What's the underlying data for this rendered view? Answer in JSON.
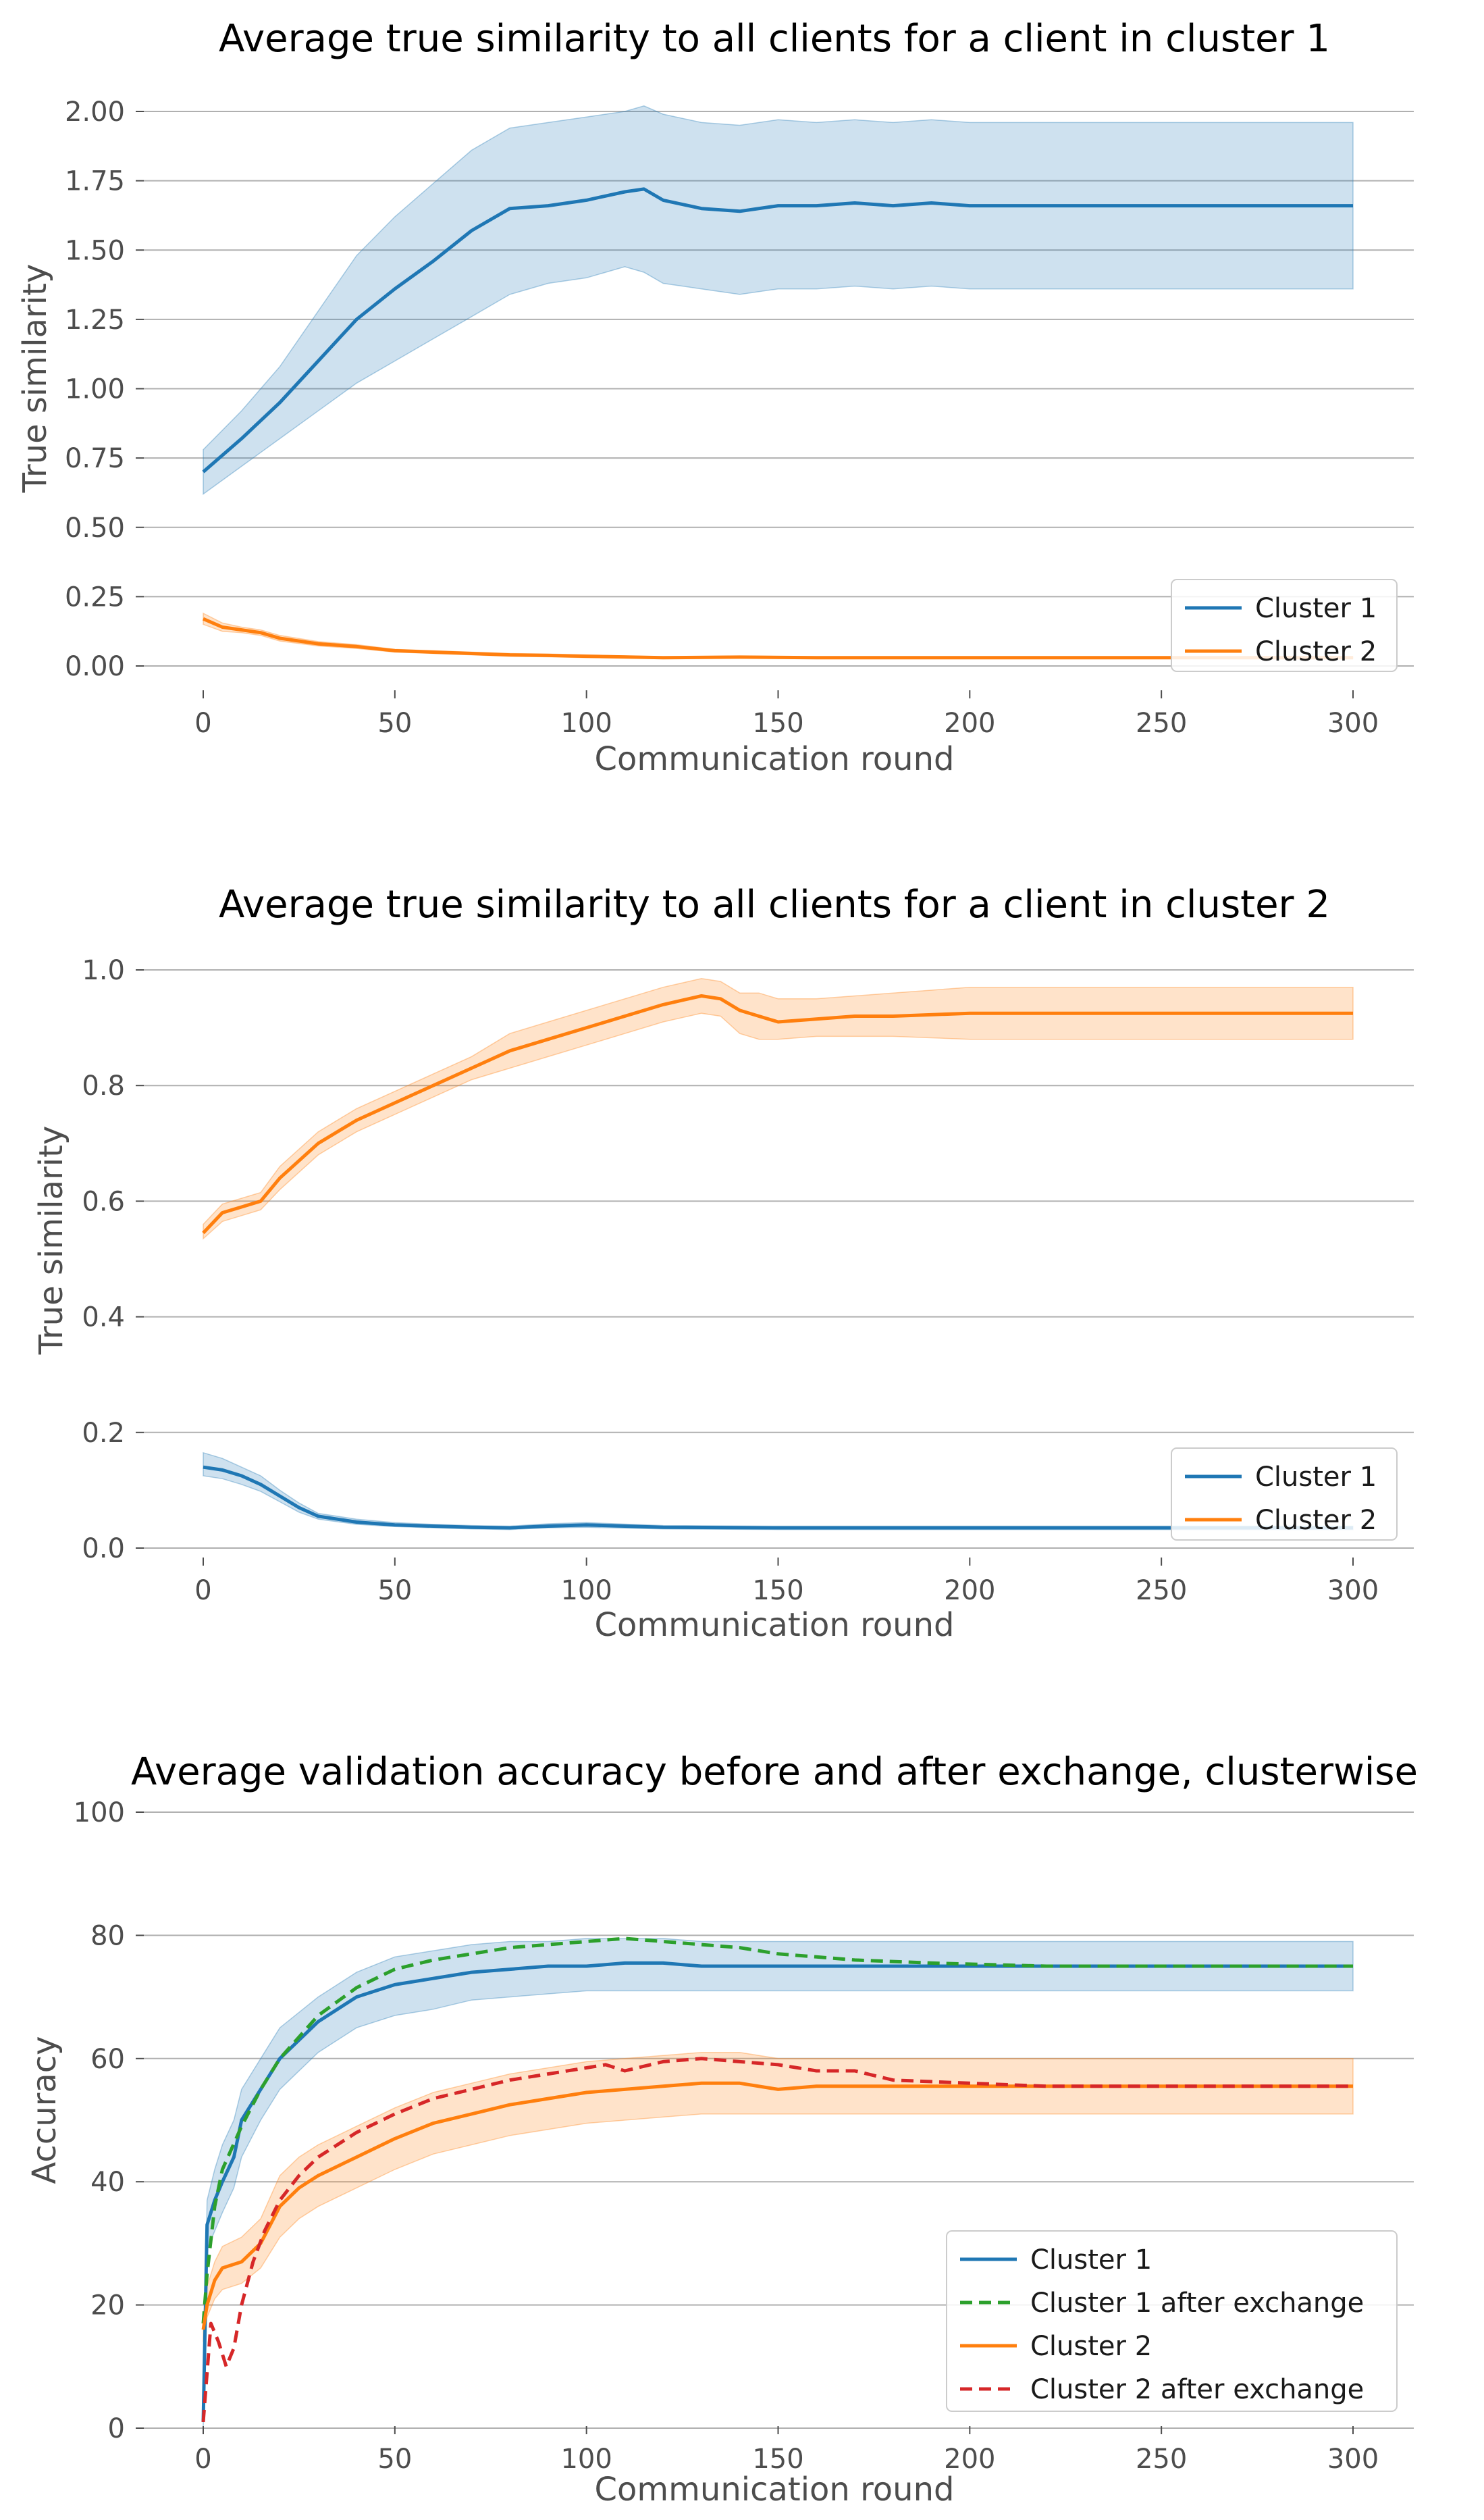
{
  "colors": {
    "cluster1": "#1f77b4",
    "cluster2": "#ff7f0e",
    "cluster1_after": "#2ca02c",
    "cluster2_after": "#d62728",
    "grid": "#b0b0b0",
    "tick_text": "#4d4d4d"
  },
  "chart_data": [
    {
      "type": "line",
      "title": "Average true similarity to all clients for a client in cluster 1",
      "xlabel": "Communication round",
      "ylabel": "True similarity",
      "xlim": [
        0,
        300
      ],
      "ylim": [
        0,
        2.0
      ],
      "xticks": [
        0,
        50,
        100,
        150,
        200,
        250,
        300
      ],
      "yticks": [
        0.0,
        0.25,
        0.5,
        0.75,
        1.0,
        1.25,
        1.5,
        1.75,
        2.0
      ],
      "ytick_labels": [
        "0.00",
        "0.25",
        "0.50",
        "0.75",
        "1.00",
        "1.25",
        "1.50",
        "1.75",
        "2.00"
      ],
      "grid": "horizontal",
      "legend": "bottom-right",
      "series": [
        {
          "name": "Cluster 1",
          "color_key": "cluster1",
          "dash": false,
          "x": [
            0,
            10,
            20,
            30,
            40,
            50,
            60,
            70,
            80,
            90,
            100,
            110,
            115,
            120,
            130,
            140,
            150,
            160,
            170,
            180,
            190,
            200,
            210,
            220,
            300
          ],
          "y": [
            0.7,
            0.82,
            0.95,
            1.1,
            1.25,
            1.36,
            1.46,
            1.57,
            1.65,
            1.66,
            1.68,
            1.71,
            1.72,
            1.68,
            1.65,
            1.64,
            1.66,
            1.66,
            1.67,
            1.66,
            1.67,
            1.66,
            1.66,
            1.66,
            1.66
          ],
          "band_lower": [
            0.62,
            0.72,
            0.82,
            0.92,
            1.02,
            1.1,
            1.18,
            1.26,
            1.34,
            1.38,
            1.4,
            1.44,
            1.42,
            1.38,
            1.36,
            1.34,
            1.36,
            1.36,
            1.37,
            1.36,
            1.37,
            1.36,
            1.36,
            1.36,
            1.36
          ],
          "band_upper": [
            0.78,
            0.92,
            1.08,
            1.28,
            1.48,
            1.62,
            1.74,
            1.86,
            1.94,
            1.96,
            1.98,
            2.0,
            2.02,
            1.99,
            1.96,
            1.95,
            1.97,
            1.96,
            1.97,
            1.96,
            1.97,
            1.96,
            1.96,
            1.96,
            1.96
          ]
        },
        {
          "name": "Cluster 2",
          "color_key": "cluster2",
          "dash": false,
          "x": [
            0,
            5,
            10,
            15,
            20,
            30,
            40,
            50,
            60,
            70,
            80,
            90,
            100,
            120,
            140,
            160,
            200,
            250,
            300
          ],
          "y": [
            0.17,
            0.14,
            0.13,
            0.12,
            0.1,
            0.08,
            0.07,
            0.055,
            0.05,
            0.045,
            0.04,
            0.038,
            0.035,
            0.03,
            0.032,
            0.03,
            0.03,
            0.03,
            0.03
          ],
          "band_lower": [
            0.15,
            0.125,
            0.12,
            0.11,
            0.09,
            0.072,
            0.063,
            0.05,
            0.045,
            0.04,
            0.035,
            0.033,
            0.03,
            0.027,
            0.028,
            0.027,
            0.027,
            0.027,
            0.027
          ],
          "band_upper": [
            0.19,
            0.155,
            0.14,
            0.13,
            0.11,
            0.088,
            0.077,
            0.06,
            0.055,
            0.05,
            0.045,
            0.043,
            0.04,
            0.033,
            0.036,
            0.033,
            0.033,
            0.033,
            0.033
          ]
        }
      ]
    },
    {
      "type": "line",
      "title": "Average true similarity to all clients for a client in cluster 2",
      "xlabel": "Communication round",
      "ylabel": "True similarity",
      "xlim": [
        0,
        300
      ],
      "ylim": [
        0,
        1.0
      ],
      "xticks": [
        0,
        50,
        100,
        150,
        200,
        250,
        300
      ],
      "yticks": [
        0.0,
        0.2,
        0.4,
        0.6,
        0.8,
        1.0
      ],
      "ytick_labels": [
        "0.0",
        "0.2",
        "0.4",
        "0.6",
        "0.8",
        "1.0"
      ],
      "grid": "horizontal",
      "legend": "bottom-right",
      "series": [
        {
          "name": "Cluster 1",
          "color_key": "cluster1",
          "dash": false,
          "x": [
            0,
            5,
            10,
            15,
            20,
            25,
            30,
            40,
            50,
            60,
            70,
            80,
            90,
            100,
            120,
            150,
            200,
            250,
            300
          ],
          "y": [
            0.14,
            0.135,
            0.125,
            0.11,
            0.09,
            0.07,
            0.055,
            0.045,
            0.04,
            0.038,
            0.036,
            0.035,
            0.038,
            0.04,
            0.036,
            0.035,
            0.035,
            0.035,
            0.035
          ],
          "band_lower": [
            0.125,
            0.12,
            0.11,
            0.098,
            0.08,
            0.062,
            0.05,
            0.041,
            0.037,
            0.035,
            0.033,
            0.032,
            0.035,
            0.036,
            0.033,
            0.032,
            0.032,
            0.032,
            0.032
          ],
          "band_upper": [
            0.165,
            0.155,
            0.14,
            0.125,
            0.1,
            0.078,
            0.06,
            0.05,
            0.044,
            0.041,
            0.039,
            0.038,
            0.042,
            0.044,
            0.039,
            0.038,
            0.038,
            0.038,
            0.038
          ]
        },
        {
          "name": "Cluster 2",
          "color_key": "cluster2",
          "dash": false,
          "x": [
            0,
            5,
            10,
            15,
            20,
            30,
            40,
            50,
            60,
            70,
            80,
            90,
            100,
            110,
            120,
            130,
            135,
            140,
            145,
            150,
            160,
            170,
            180,
            200,
            220,
            300
          ],
          "y": [
            0.545,
            0.58,
            0.59,
            0.6,
            0.64,
            0.7,
            0.74,
            0.77,
            0.8,
            0.83,
            0.86,
            0.88,
            0.9,
            0.92,
            0.94,
            0.955,
            0.95,
            0.93,
            0.92,
            0.91,
            0.915,
            0.92,
            0.92,
            0.925,
            0.925,
            0.925
          ],
          "band_lower": [
            0.535,
            0.565,
            0.575,
            0.585,
            0.62,
            0.68,
            0.72,
            0.75,
            0.78,
            0.81,
            0.83,
            0.85,
            0.87,
            0.89,
            0.91,
            0.925,
            0.92,
            0.89,
            0.88,
            0.88,
            0.885,
            0.885,
            0.885,
            0.88,
            0.88,
            0.88
          ],
          "band_upper": [
            0.56,
            0.595,
            0.605,
            0.615,
            0.66,
            0.72,
            0.76,
            0.79,
            0.82,
            0.85,
            0.89,
            0.91,
            0.93,
            0.95,
            0.97,
            0.985,
            0.98,
            0.96,
            0.96,
            0.95,
            0.95,
            0.955,
            0.96,
            0.97,
            0.97,
            0.97
          ]
        }
      ]
    },
    {
      "type": "line",
      "title": "Average validation accuracy before and after exchange, clusterwise",
      "xlabel": "Communication round",
      "ylabel": "Accuracy",
      "xlim": [
        0,
        300
      ],
      "ylim": [
        0,
        100
      ],
      "xticks": [
        0,
        50,
        100,
        150,
        200,
        250,
        300
      ],
      "yticks": [
        0,
        20,
        40,
        60,
        80,
        100
      ],
      "ytick_labels": [
        "0",
        "20",
        "40",
        "60",
        "80",
        "100"
      ],
      "grid": "horizontal",
      "legend": "bottom-right",
      "series": [
        {
          "name": "Cluster 1",
          "color_key": "cluster1",
          "dash": false,
          "x": [
            0,
            1,
            3,
            5,
            8,
            10,
            15,
            20,
            30,
            40,
            50,
            60,
            70,
            80,
            90,
            100,
            110,
            120,
            130,
            140,
            150,
            170,
            200,
            220,
            300
          ],
          "y": [
            1,
            33,
            37,
            40,
            44,
            50,
            55,
            60,
            66,
            70,
            72,
            73,
            74,
            74.5,
            75,
            75,
            75.5,
            75.5,
            75,
            75,
            75,
            75,
            75,
            75,
            75
          ],
          "band_lower": [
            0,
            29,
            32,
            35,
            39,
            44,
            50,
            55,
            61,
            65,
            67,
            68,
            69.5,
            70,
            70.5,
            71,
            71,
            71,
            71,
            71,
            71,
            71,
            71,
            71,
            71
          ],
          "band_upper": [
            2,
            37,
            42,
            46,
            50,
            55,
            60,
            65,
            70,
            74,
            76.5,
            77.5,
            78.5,
            79,
            79,
            79.5,
            79.5,
            79.5,
            79,
            79,
            79,
            79,
            79,
            79,
            79
          ]
        },
        {
          "name": "Cluster 1 after exchange",
          "color_key": "cluster1_after",
          "dash": true,
          "x": [
            0,
            1,
            3,
            5,
            10,
            15,
            20,
            30,
            40,
            50,
            60,
            70,
            80,
            90,
            100,
            110,
            120,
            130,
            140,
            150,
            160,
            170,
            190,
            220,
            300
          ],
          "y": [
            17,
            25,
            36,
            42,
            49,
            55,
            60,
            67,
            71.5,
            74.5,
            76,
            77,
            78,
            78.5,
            79,
            79.5,
            79,
            78.5,
            78,
            77,
            76.5,
            76,
            75.5,
            75,
            75
          ]
        },
        {
          "name": "Cluster 2",
          "color_key": "cluster2",
          "dash": false,
          "x": [
            0,
            1,
            3,
            5,
            10,
            15,
            20,
            25,
            30,
            40,
            50,
            60,
            70,
            80,
            90,
            100,
            110,
            120,
            130,
            140,
            150,
            160,
            180,
            200,
            220,
            300
          ],
          "y": [
            16,
            20,
            24,
            26,
            27,
            30,
            36,
            39,
            41,
            44,
            47,
            49.5,
            51,
            52.5,
            53.5,
            54.5,
            55,
            55.5,
            56,
            56,
            55,
            55.5,
            55.5,
            55.5,
            55.5,
            55.5
          ],
          "band_lower": [
            14,
            18,
            21,
            22.5,
            23.5,
            26,
            31,
            34,
            36,
            39,
            42,
            44.5,
            46,
            47.5,
            48.5,
            49.5,
            50,
            50.5,
            51,
            51,
            51,
            51,
            51,
            51,
            51,
            51
          ],
          "band_upper": [
            18,
            23,
            27,
            29.5,
            31,
            34,
            41,
            44,
            46,
            49,
            52,
            54.5,
            56,
            57.5,
            58.5,
            59.5,
            60,
            60.5,
            61,
            61,
            60,
            60,
            60,
            60,
            60,
            60
          ]
        },
        {
          "name": "Cluster 2 after exchange",
          "color_key": "cluster2_after",
          "dash": true,
          "x": [
            0,
            2,
            4,
            6,
            8,
            10,
            13,
            16,
            20,
            25,
            30,
            40,
            50,
            60,
            70,
            80,
            90,
            100,
            105,
            110,
            120,
            130,
            140,
            150,
            160,
            170,
            180,
            200,
            220,
            300
          ],
          "y": [
            1,
            17,
            14,
            10,
            13,
            20,
            27,
            32,
            37,
            41,
            44,
            48,
            51,
            53.5,
            55,
            56.5,
            57.5,
            58.5,
            59,
            58,
            59.5,
            60,
            59.5,
            59,
            58,
            58,
            56.5,
            56,
            55.5,
            55.5
          ]
        }
      ]
    }
  ]
}
